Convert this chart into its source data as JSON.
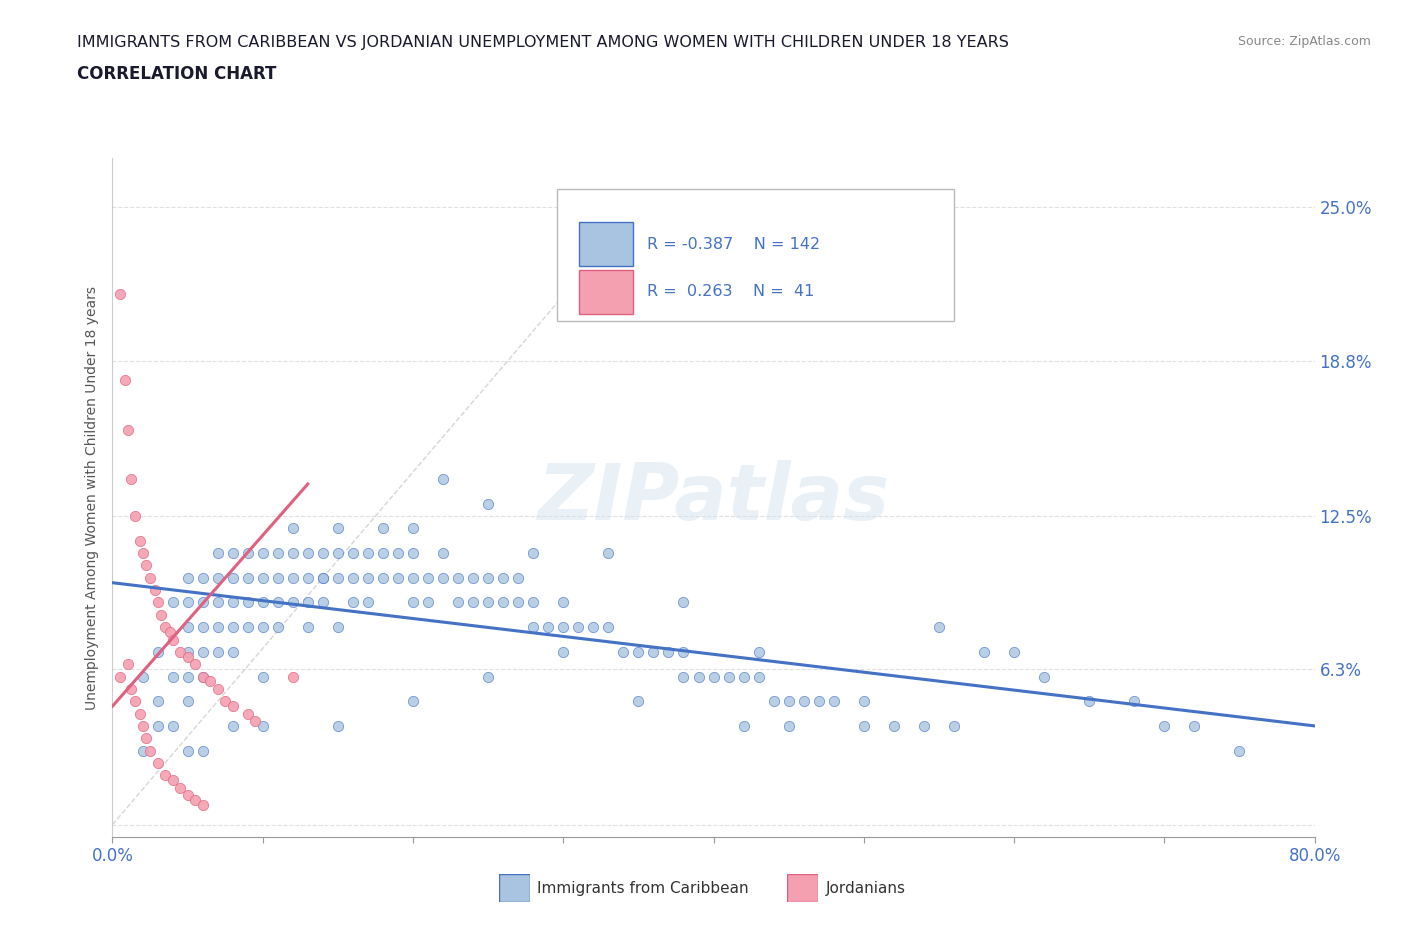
{
  "title": "IMMIGRANTS FROM CARIBBEAN VS JORDANIAN UNEMPLOYMENT AMONG WOMEN WITH CHILDREN UNDER 18 YEARS",
  "subtitle": "CORRELATION CHART",
  "source": "Source: ZipAtlas.com",
  "ylabel": "Unemployment Among Women with Children Under 18 years",
  "xlim": [
    0,
    0.8
  ],
  "ylim": [
    -0.005,
    0.27
  ],
  "blue_R": -0.387,
  "blue_N": 142,
  "pink_R": 0.263,
  "pink_N": 41,
  "blue_color": "#a8c4e0",
  "pink_color": "#f4a0b0",
  "blue_line_color": "#4472c4",
  "pink_line_color": "#e06080",
  "watermark": "ZIPatlas",
  "watermark_color": "#c8d8e8",
  "legend_label_blue": "Immigrants from Caribbean",
  "legend_label_pink": "Jordanians",
  "blue_scatter_x": [
    0.02,
    0.03,
    0.03,
    0.04,
    0.04,
    0.05,
    0.05,
    0.05,
    0.05,
    0.05,
    0.05,
    0.06,
    0.06,
    0.06,
    0.06,
    0.06,
    0.07,
    0.07,
    0.07,
    0.07,
    0.07,
    0.08,
    0.08,
    0.08,
    0.08,
    0.08,
    0.09,
    0.09,
    0.09,
    0.09,
    0.1,
    0.1,
    0.1,
    0.1,
    0.1,
    0.11,
    0.11,
    0.11,
    0.11,
    0.12,
    0.12,
    0.12,
    0.12,
    0.13,
    0.13,
    0.13,
    0.13,
    0.14,
    0.14,
    0.14,
    0.14,
    0.15,
    0.15,
    0.15,
    0.15,
    0.16,
    0.16,
    0.16,
    0.17,
    0.17,
    0.17,
    0.18,
    0.18,
    0.18,
    0.19,
    0.19,
    0.2,
    0.2,
    0.2,
    0.2,
    0.21,
    0.21,
    0.22,
    0.22,
    0.23,
    0.23,
    0.24,
    0.24,
    0.25,
    0.25,
    0.26,
    0.26,
    0.27,
    0.27,
    0.28,
    0.28,
    0.29,
    0.3,
    0.3,
    0.31,
    0.32,
    0.33,
    0.34,
    0.35,
    0.36,
    0.37,
    0.38,
    0.39,
    0.4,
    0.41,
    0.42,
    0.43,
    0.44,
    0.45,
    0.46,
    0.47,
    0.48,
    0.5,
    0.52,
    0.54,
    0.56,
    0.58,
    0.6,
    0.62,
    0.65,
    0.68,
    0.7,
    0.72,
    0.75,
    0.55,
    0.5,
    0.45,
    0.42,
    0.38,
    0.35,
    0.3,
    0.25,
    0.2,
    0.15,
    0.1,
    0.08,
    0.06,
    0.05,
    0.04,
    0.03,
    0.02,
    0.22,
    0.25,
    0.28,
    0.33,
    0.38,
    0.43
  ],
  "blue_scatter_y": [
    0.06,
    0.07,
    0.05,
    0.06,
    0.09,
    0.05,
    0.06,
    0.07,
    0.08,
    0.09,
    0.1,
    0.06,
    0.07,
    0.08,
    0.09,
    0.1,
    0.07,
    0.08,
    0.09,
    0.1,
    0.11,
    0.07,
    0.08,
    0.09,
    0.1,
    0.11,
    0.08,
    0.09,
    0.1,
    0.11,
    0.08,
    0.09,
    0.1,
    0.11,
    0.06,
    0.08,
    0.09,
    0.1,
    0.11,
    0.09,
    0.1,
    0.11,
    0.12,
    0.09,
    0.1,
    0.11,
    0.08,
    0.1,
    0.1,
    0.11,
    0.09,
    0.1,
    0.11,
    0.12,
    0.08,
    0.1,
    0.11,
    0.09,
    0.1,
    0.11,
    0.09,
    0.1,
    0.11,
    0.12,
    0.1,
    0.11,
    0.1,
    0.11,
    0.12,
    0.09,
    0.09,
    0.1,
    0.1,
    0.11,
    0.09,
    0.1,
    0.09,
    0.1,
    0.09,
    0.1,
    0.09,
    0.1,
    0.09,
    0.1,
    0.09,
    0.08,
    0.08,
    0.08,
    0.09,
    0.08,
    0.08,
    0.08,
    0.07,
    0.07,
    0.07,
    0.07,
    0.07,
    0.06,
    0.06,
    0.06,
    0.06,
    0.06,
    0.05,
    0.05,
    0.05,
    0.05,
    0.05,
    0.04,
    0.04,
    0.04,
    0.04,
    0.07,
    0.07,
    0.06,
    0.05,
    0.05,
    0.04,
    0.04,
    0.03,
    0.08,
    0.05,
    0.04,
    0.04,
    0.06,
    0.05,
    0.07,
    0.06,
    0.05,
    0.04,
    0.04,
    0.04,
    0.03,
    0.03,
    0.04,
    0.04,
    0.03,
    0.14,
    0.13,
    0.11,
    0.11,
    0.09,
    0.07
  ],
  "pink_scatter_x": [
    0.005,
    0.005,
    0.008,
    0.01,
    0.01,
    0.012,
    0.012,
    0.015,
    0.015,
    0.018,
    0.018,
    0.02,
    0.02,
    0.022,
    0.022,
    0.025,
    0.025,
    0.028,
    0.03,
    0.03,
    0.032,
    0.035,
    0.035,
    0.038,
    0.04,
    0.04,
    0.045,
    0.045,
    0.05,
    0.05,
    0.055,
    0.055,
    0.06,
    0.06,
    0.065,
    0.07,
    0.075,
    0.08,
    0.09,
    0.095,
    0.12
  ],
  "pink_scatter_y": [
    0.215,
    0.06,
    0.18,
    0.16,
    0.065,
    0.14,
    0.055,
    0.125,
    0.05,
    0.115,
    0.045,
    0.11,
    0.04,
    0.105,
    0.035,
    0.1,
    0.03,
    0.095,
    0.09,
    0.025,
    0.085,
    0.08,
    0.02,
    0.078,
    0.075,
    0.018,
    0.07,
    0.015,
    0.068,
    0.012,
    0.065,
    0.01,
    0.06,
    0.008,
    0.058,
    0.055,
    0.05,
    0.048,
    0.045,
    0.042,
    0.06
  ],
  "grid_color": "#dddddd",
  "axis_label_color": "#4472c4",
  "blue_trend_x": [
    0.0,
    0.8
  ],
  "blue_trend_y": [
    0.098,
    0.04
  ],
  "pink_trend_x": [
    0.0,
    0.13
  ],
  "pink_trend_y": [
    0.048,
    0.138
  ]
}
